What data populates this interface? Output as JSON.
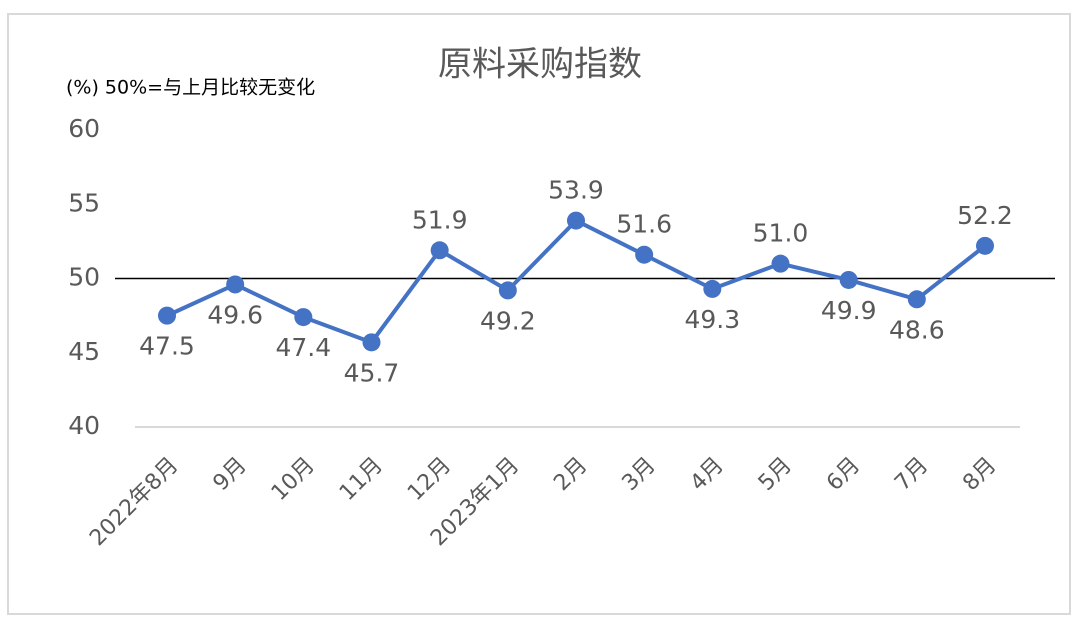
{
  "chart_data": {
    "type": "line",
    "title": "原料采购指数",
    "subtitle": "(%)  50%=与上月比较无变化",
    "categories": [
      "2022年8月",
      "9月",
      "10月",
      "11月",
      "12月",
      "2023年1月",
      "2月",
      "3月",
      "4月",
      "5月",
      "6月",
      "7月",
      "8月"
    ],
    "series": [
      {
        "name": "原料采购指数",
        "color": "#4472c4",
        "values": [
          47.5,
          49.6,
          47.4,
          45.7,
          51.9,
          49.2,
          53.9,
          51.6,
          49.3,
          51.0,
          49.9,
          48.6,
          52.2
        ],
        "value_labels": [
          "47.5",
          "49.6",
          "47.4",
          "45.7",
          "51.9",
          "49.2",
          "53.9",
          "51.6",
          "49.3",
          "51.0",
          "49.9",
          "48.6",
          "52.2"
        ]
      }
    ],
    "ylim": [
      40,
      60
    ],
    "yticks": [
      40,
      45,
      50,
      55,
      60
    ],
    "reference_line": 50
  }
}
